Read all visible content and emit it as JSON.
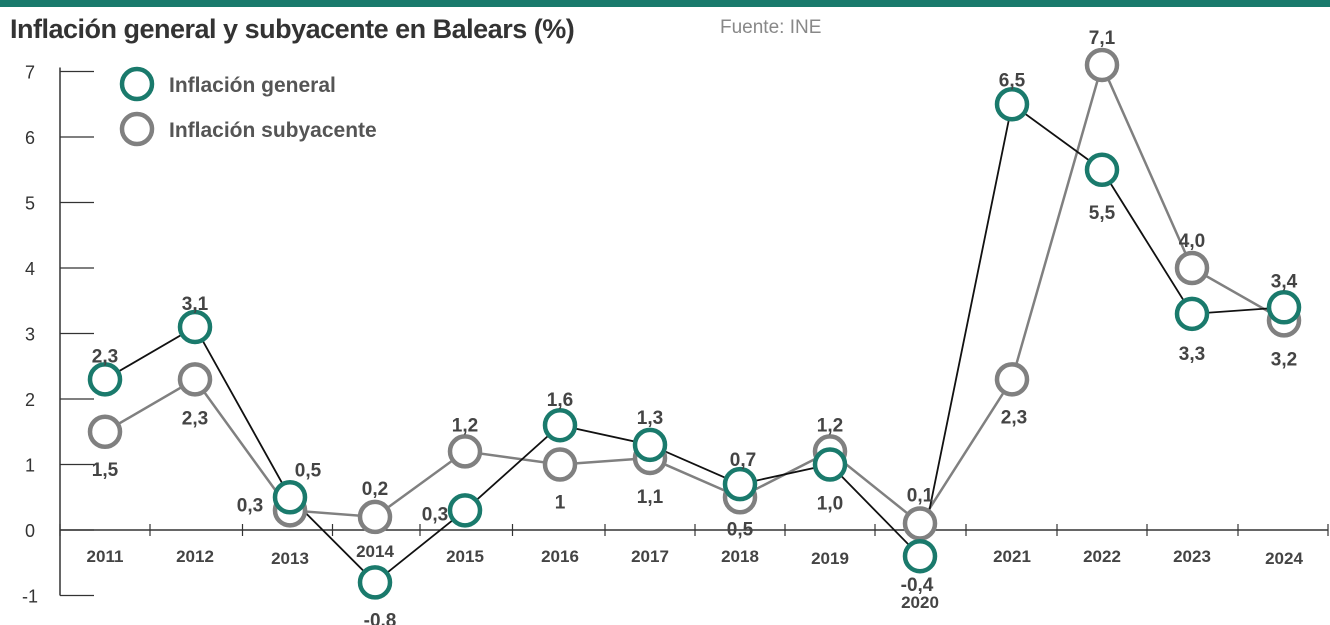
{
  "title": "Inflación general y subyacente en Balears (%)",
  "source": "Fuente: INE",
  "colors": {
    "bar": "#1a7a6c",
    "general": "#1a7a6c",
    "subyacente": "#808080"
  },
  "chart_data": {
    "type": "line",
    "title": "Inflación general y subyacente en Balears (%)",
    "x": [
      "2011",
      "2012",
      "2013",
      "2014",
      "2015",
      "2016",
      "2017",
      "2018",
      "2019",
      "2020",
      "2021",
      "2022",
      "2023",
      "2024"
    ],
    "ylim": [
      -1,
      7
    ],
    "yticks": [
      "7",
      "6",
      "5",
      "4",
      "3",
      "2",
      "1",
      "0",
      "-1"
    ],
    "ytick_values": [
      7,
      6,
      5,
      4,
      3,
      2,
      1,
      0,
      -1
    ],
    "legend_position": "top-left",
    "series": [
      {
        "name": "Inflación general",
        "values": [
          2.3,
          3.1,
          0.5,
          -0.8,
          0.3,
          1.6,
          1.3,
          0.7,
          1.0,
          -0.4,
          6.5,
          5.5,
          3.3,
          3.4
        ],
        "labels": [
          "2,3",
          "3,1",
          "0,5",
          "-0,8",
          "0,3",
          "1,6",
          "1,3",
          "0,7",
          "1,0",
          "-0,4",
          "6,5",
          "5,5",
          "3,3",
          "3,4"
        ]
      },
      {
        "name": "Inflación subyacente",
        "values": [
          1.5,
          2.3,
          0.3,
          0.2,
          1.2,
          1.0,
          1.1,
          0.5,
          1.2,
          0.1,
          2.3,
          7.1,
          4.0,
          3.2
        ],
        "labels": [
          "1,5",
          "2,3",
          "0,3",
          "0,2",
          "1,2",
          "1",
          "1,1",
          "0,5",
          "1,2",
          "0,1",
          "2,3",
          "7,1",
          "4,0",
          "3,2"
        ]
      }
    ]
  }
}
